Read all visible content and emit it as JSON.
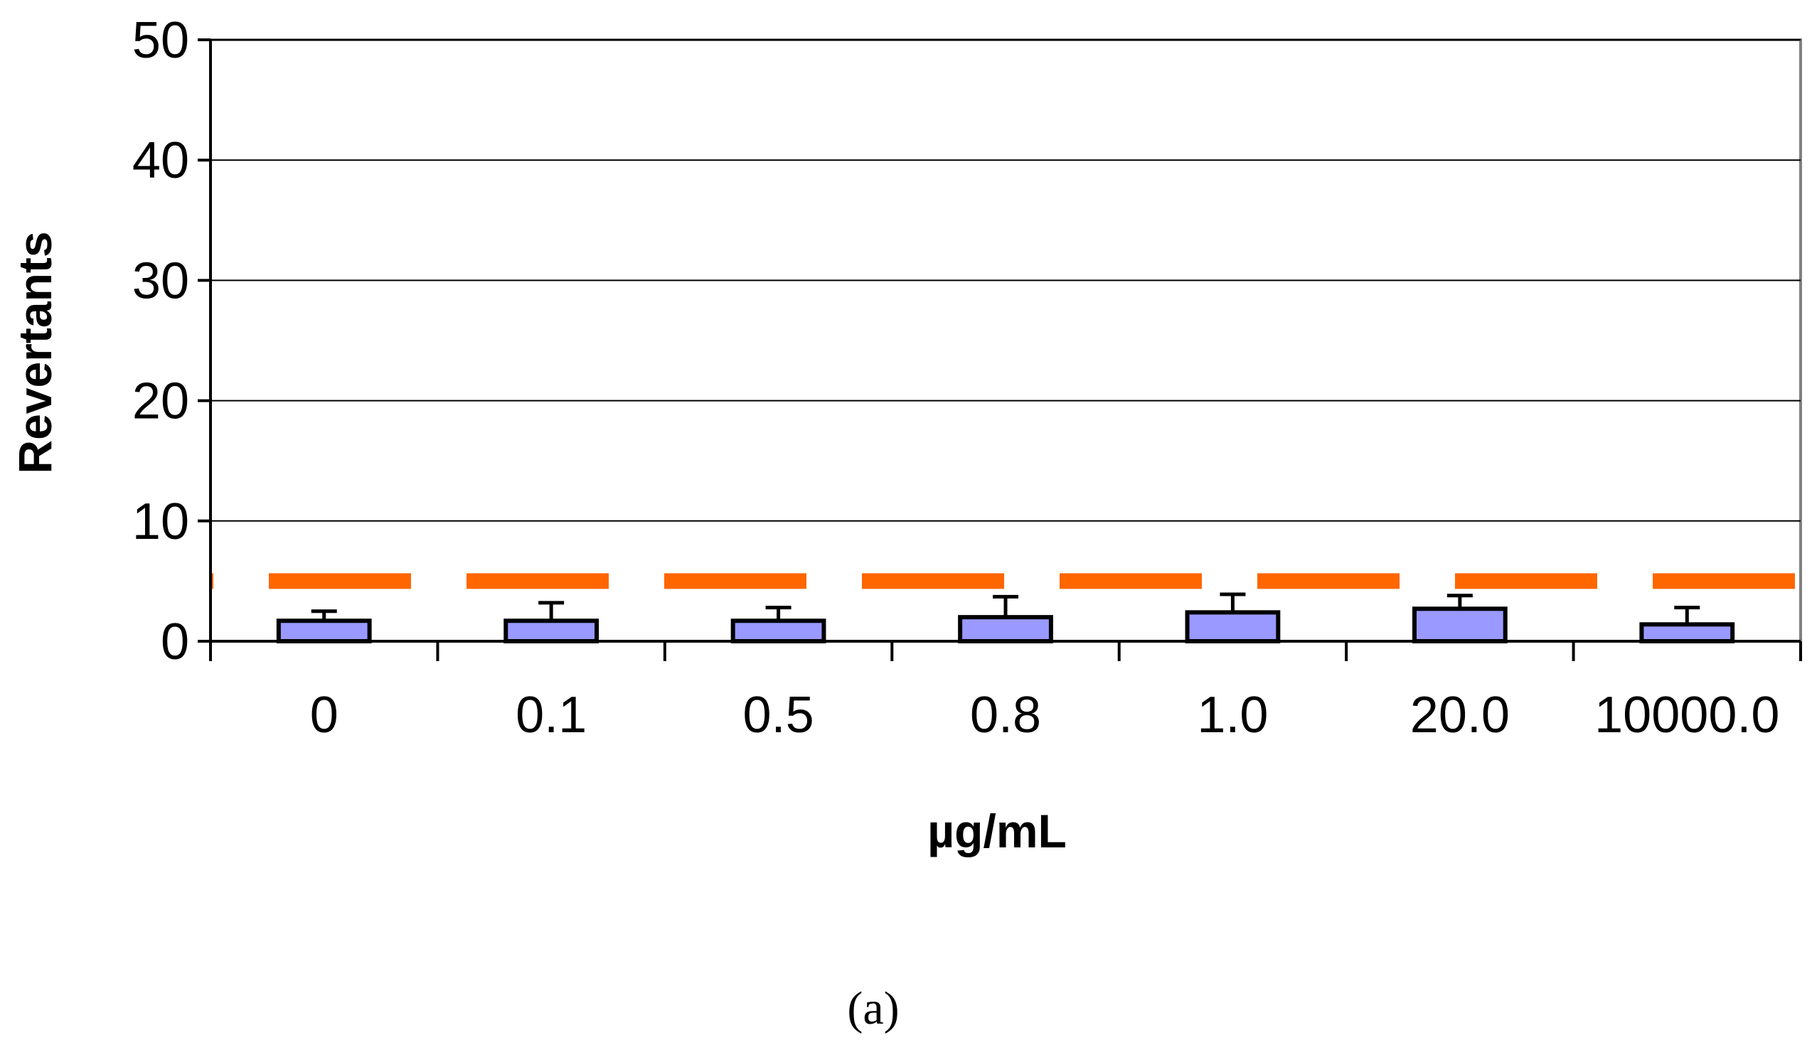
{
  "chart_data": {
    "type": "bar",
    "title": "",
    "xlabel": "µg/mL",
    "ylabel": "Revertants",
    "caption": "(a)",
    "categories": [
      "0",
      "0.1",
      "0.5",
      "0.8",
      "1.0",
      "20.0",
      "10000.0"
    ],
    "series": [
      {
        "name": "Revertants",
        "values": [
          1.7,
          1.7,
          1.7,
          2.0,
          2.4,
          2.7,
          1.4
        ],
        "error": [
          0.8,
          1.5,
          1.1,
          1.7,
          1.5,
          1.1,
          1.4
        ],
        "color": "#9999ff"
      }
    ],
    "reference_line": {
      "value": 5,
      "style": "dashed",
      "color": "#ff6600"
    },
    "ylim": [
      0,
      50
    ],
    "yticks": [
      0,
      10,
      20,
      30,
      40,
      50
    ],
    "grid": true
  }
}
